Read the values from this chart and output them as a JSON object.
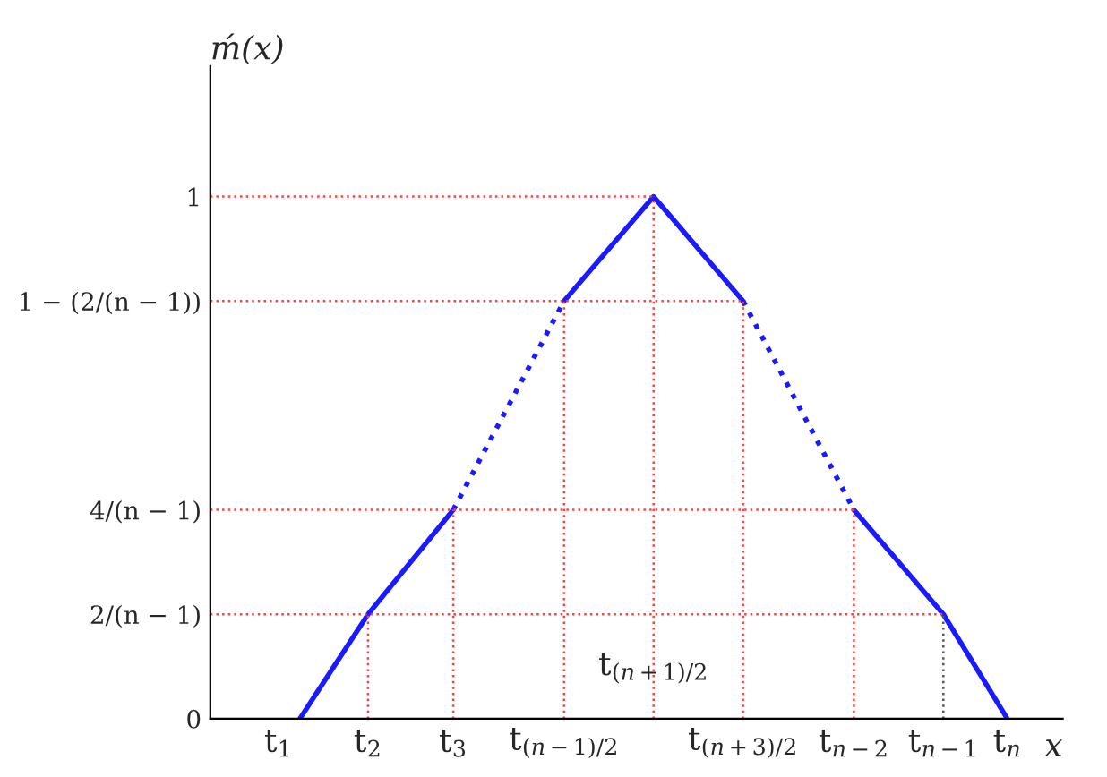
{
  "chart_data": {
    "type": "line",
    "xlabel": "x",
    "ylabel": "ḿ(x)",
    "series": [
      {
        "color": "#1a1aff",
        "line_style": "solid",
        "x": [
          1.05,
          1.85,
          2.85
        ],
        "values": [
          0,
          0.2,
          0.4
        ]
      },
      {
        "color": "#1a1aff",
        "line_style": "dotted",
        "x": [
          2.85,
          4.15
        ],
        "values": [
          0.4,
          0.8
        ]
      },
      {
        "color": "#1a1aff",
        "line_style": "solid",
        "x": [
          4.15,
          5.2,
          6.25
        ],
        "values": [
          0.8,
          1,
          0.8
        ]
      },
      {
        "color": "#1a1aff",
        "line_style": "dotted",
        "x": [
          6.25,
          7.55
        ],
        "values": [
          0.8,
          0.4
        ]
      },
      {
        "color": "#1a1aff",
        "line_style": "solid",
        "x": [
          7.55,
          8.6,
          9.35
        ],
        "values": [
          0.4,
          0.2,
          0
        ]
      }
    ],
    "xlim": [
      0,
      10
    ],
    "ylim": [
      0,
      1.25
    ],
    "xticks": [
      {
        "value": 0.8,
        "label": "t$_{1}$"
      },
      {
        "value": 1.85,
        "label": "t$_{2}$"
      },
      {
        "value": 2.85,
        "label": "t$_{3}$"
      },
      {
        "value": 4.15,
        "label": "t$_{(n−1)/2}$"
      },
      {
        "value": 6.25,
        "label": "t$_{(n+3)/2}$"
      },
      {
        "value": 7.55,
        "label": "t$_{n−2}$"
      },
      {
        "value": 8.6,
        "label": "t$_{n−1}$"
      },
      {
        "value": 9.35,
        "label": "t$_{n}$"
      }
    ],
    "yticks": [
      0,
      {
        "value": 0.2,
        "label": "2/(n − 1)"
      },
      {
        "value": 0.4,
        "label": "4/(n − 1)"
      },
      {
        "value": 0.8,
        "label": "1 − (2/(n − 1))"
      },
      1
    ],
    "ref_lines": [
      {
        "axis": "y",
        "value": 0.2,
        "color": "#ff4040",
        "line_style": "dotted"
      },
      {
        "axis": "y",
        "value": 0.4,
        "color": "#ff4040",
        "line_style": "dotted"
      },
      {
        "axis": "y",
        "value": 0.8,
        "color": "#ff4040",
        "line_style": "dotted"
      },
      {
        "axis": "y",
        "value": 1,
        "color": "#ff4040",
        "line_style": "dotted"
      },
      {
        "axis": "x",
        "value": 1.85,
        "color": "#ff4040",
        "line_style": "dotted"
      },
      {
        "axis": "x",
        "value": 2.85,
        "color": "#ff4040",
        "line_style": "dotted"
      },
      {
        "axis": "x",
        "value": 4.15,
        "color": "#ff4040",
        "line_style": "dotted"
      },
      {
        "axis": "x",
        "value": 5.2,
        "color": "#ff4040",
        "line_style": "dotted"
      },
      {
        "axis": "x",
        "value": 6.25,
        "color": "#ff4040",
        "line_style": "dotted"
      },
      {
        "axis": "x",
        "value": 7.55,
        "color": "#ff4040",
        "line_style": "dotted"
      },
      {
        "axis": "x",
        "value": 8.6,
        "color": "#555555",
        "line_style": "dotted"
      }
    ],
    "annotations": [
      {
        "text": "t$_{(n+1)/2}$",
        "x": 5.2,
        "y": 0
      }
    ],
    "grid": false,
    "marker": "none"
  }
}
